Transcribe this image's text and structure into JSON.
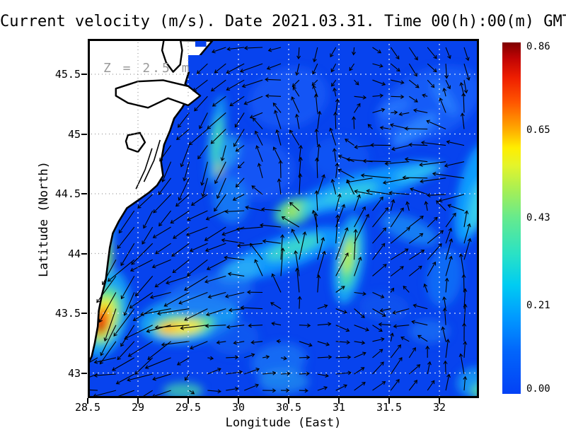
{
  "title": "Current velocity (m/s). Date 2021.03.31. Time 00(h):00(m) GMT",
  "annotation": {
    "depth_label": "Z = 2.5 m"
  },
  "axes": {
    "x_label": "Longitude (East)",
    "y_label": "Latitude (North)",
    "x_ticks": [
      {
        "value": 28.5,
        "label": "28.5"
      },
      {
        "value": 29,
        "label": "29"
      },
      {
        "value": 29.5,
        "label": "29.5"
      },
      {
        "value": 30,
        "label": "30"
      },
      {
        "value": 30.5,
        "label": "30.5"
      },
      {
        "value": 31,
        "label": "31"
      },
      {
        "value": 31.5,
        "label": "31.5"
      },
      {
        "value": 32,
        "label": "32"
      }
    ],
    "y_ticks": [
      {
        "value": 45.5,
        "label": "45.5"
      },
      {
        "value": 45,
        "label": "45"
      },
      {
        "value": 44.5,
        "label": "44.5"
      },
      {
        "value": 44,
        "label": "44"
      },
      {
        "value": 43.5,
        "label": "43.5"
      },
      {
        "value": 43,
        "label": "43"
      }
    ]
  },
  "colorbar": {
    "min": 0.0,
    "max": 0.86,
    "ticks": [
      {
        "value": 0.86,
        "label": "0.86"
      },
      {
        "value": 0.65,
        "label": "0.65"
      },
      {
        "value": 0.43,
        "label": "0.43"
      },
      {
        "value": 0.21,
        "label": "0.21"
      },
      {
        "value": 0.0,
        "label": "0.00"
      }
    ],
    "stops": [
      {
        "t": 0.0,
        "c": "#0341f5"
      },
      {
        "t": 0.12,
        "c": "#0265fb"
      },
      {
        "t": 0.22,
        "c": "#019bff"
      },
      {
        "t": 0.31,
        "c": "#00ccf2"
      },
      {
        "t": 0.4,
        "c": "#2be2c4"
      },
      {
        "t": 0.5,
        "c": "#65ea8e"
      },
      {
        "t": 0.58,
        "c": "#a7ef55"
      },
      {
        "t": 0.65,
        "c": "#e4f42b"
      },
      {
        "t": 0.7,
        "c": "#ffee00"
      },
      {
        "t": 0.755,
        "c": "#ffa800"
      },
      {
        "t": 0.83,
        "c": "#ff5500"
      },
      {
        "t": 0.9,
        "c": "#ee1e00"
      },
      {
        "t": 0.955,
        "c": "#c00404"
      },
      {
        "t": 1.0,
        "c": "#7f0000"
      }
    ]
  },
  "colors": {
    "ocean_base": "#0743ee",
    "land": "#ffffff",
    "coastline": "#000000",
    "arrows": "#000000",
    "grid_sea": "#e9eef6",
    "grid_land": "#9c9c9c",
    "frame": "#000000",
    "annotation_gray": "#9a9a9a"
  },
  "chart_data": {
    "type": "vector_field_heatmap",
    "quantity": "current velocity",
    "units": "m/s",
    "depth_m": 2.5,
    "datetime": "2021.03.31 00:00 GMT",
    "x_range": [
      28.5,
      32.394
    ],
    "y_range": [
      42.79,
      45.796
    ],
    "value_range": [
      0.0,
      0.86
    ],
    "hotspots": [
      {
        "lon": 28.63,
        "lat": 43.43,
        "value": 0.86,
        "note": "max velocity core at coast"
      },
      {
        "lon": 29.4,
        "lat": 43.38,
        "value": 0.6,
        "note": "yellow jet band"
      },
      {
        "lon": 31.1,
        "lat": 43.97,
        "value": 0.55,
        "note": "green band in eddy"
      },
      {
        "lon": 30.55,
        "lat": 44.36,
        "value": 0.5,
        "note": "green patch"
      }
    ],
    "blobs": [
      {
        "lon": 31.9,
        "lat": 45.25,
        "w": 1.1,
        "h": 0.55,
        "rot": -25,
        "c": "#1b63fa",
        "o": 0.75
      },
      {
        "lon": 30.5,
        "lat": 45.3,
        "w": 0.8,
        "h": 0.5,
        "rot": -15,
        "c": "#1b63fa",
        "o": 0.6
      },
      {
        "lon": 30.2,
        "lat": 44.7,
        "w": 0.7,
        "h": 0.5,
        "rot": 0,
        "c": "#1b63fa",
        "o": 0.6
      },
      {
        "lon": 31.0,
        "lat": 44.8,
        "w": 0.6,
        "h": 0.35,
        "rot": 0,
        "c": "#1b63fa",
        "o": 0.5
      },
      {
        "lon": 31.75,
        "lat": 45.03,
        "w": 0.55,
        "h": 0.14,
        "rot": -35,
        "c": "#2f86ff",
        "o": 0.85
      },
      {
        "lon": 32.05,
        "lat": 45.3,
        "w": 0.4,
        "h": 0.12,
        "rot": 55,
        "c": "#2f86ff",
        "o": 0.7
      },
      {
        "lon": 31.55,
        "lat": 45.22,
        "w": 0.35,
        "h": 0.1,
        "rot": -20,
        "c": "#2f86ff",
        "o": 0.6
      },
      {
        "lon": 32.33,
        "lat": 44.5,
        "w": 0.3,
        "h": 0.85,
        "rot": 12,
        "c": "#12a6ff",
        "o": 0.9
      },
      {
        "lon": 32.38,
        "lat": 44.4,
        "w": 0.16,
        "h": 0.45,
        "rot": 12,
        "c": "#3fd9e8",
        "o": 0.85
      },
      {
        "lon": 31.25,
        "lat": 44.55,
        "w": 1.5,
        "h": 0.26,
        "rot": -17,
        "c": "#129cff",
        "o": 0.9
      },
      {
        "lon": 31.1,
        "lat": 44.5,
        "w": 0.6,
        "h": 0.13,
        "rot": -17,
        "c": "#37d3e0",
        "o": 0.8
      },
      {
        "lon": 31.8,
        "lat": 44.68,
        "w": 0.5,
        "h": 0.12,
        "rot": -15,
        "c": "#2fc3f2",
        "o": 0.8
      },
      {
        "lon": 30.45,
        "lat": 44.0,
        "w": 1.25,
        "h": 0.28,
        "rot": -20,
        "c": "#129cff",
        "o": 0.9
      },
      {
        "lon": 30.55,
        "lat": 44.05,
        "w": 0.6,
        "h": 0.14,
        "rot": -20,
        "c": "#40dfc8",
        "o": 0.85
      },
      {
        "lon": 30.0,
        "lat": 43.85,
        "w": 0.45,
        "h": 0.2,
        "rot": -20,
        "c": "#2aaff5",
        "o": 0.8
      },
      {
        "lon": 31.1,
        "lat": 43.95,
        "w": 0.3,
        "h": 0.75,
        "rot": 8,
        "c": "#18aef5",
        "o": 0.9
      },
      {
        "lon": 31.1,
        "lat": 43.95,
        "w": 0.17,
        "h": 0.5,
        "rot": 8,
        "c": "#4ce39e",
        "o": 0.9
      },
      {
        "lon": 31.09,
        "lat": 43.98,
        "w": 0.1,
        "h": 0.3,
        "rot": 8,
        "c": "#c2ef3f",
        "o": 0.9
      },
      {
        "lon": 30.55,
        "lat": 44.35,
        "w": 0.4,
        "h": 0.22,
        "rot": -20,
        "c": "#4ce39e",
        "o": 0.85
      },
      {
        "lon": 30.55,
        "lat": 44.36,
        "w": 0.2,
        "h": 0.1,
        "rot": -20,
        "c": "#b4ec45",
        "o": 0.8
      },
      {
        "lon": 31.7,
        "lat": 44.2,
        "w": 0.6,
        "h": 0.2,
        "rot": 22,
        "c": "#1b8cf5",
        "o": 0.8
      },
      {
        "lon": 32.05,
        "lat": 43.8,
        "w": 0.35,
        "h": 0.5,
        "rot": 8,
        "c": "#1677f8",
        "o": 0.75
      },
      {
        "lon": 29.5,
        "lat": 43.45,
        "w": 1.0,
        "h": 0.4,
        "rot": -8,
        "c": "#18aef5",
        "o": 0.85
      },
      {
        "lon": 29.45,
        "lat": 43.4,
        "w": 0.62,
        "h": 0.2,
        "rot": -6,
        "c": "#5fe88a",
        "o": 0.9
      },
      {
        "lon": 29.42,
        "lat": 43.38,
        "w": 0.45,
        "h": 0.12,
        "rot": -6,
        "c": "#ffe63c",
        "o": 0.95
      },
      {
        "lon": 29.3,
        "lat": 43.38,
        "w": 0.2,
        "h": 0.08,
        "rot": -6,
        "c": "#ffb31e",
        "o": 0.9
      },
      {
        "lon": 28.68,
        "lat": 44.3,
        "w": 0.2,
        "h": 1.3,
        "rot": 4,
        "c": "#17a0f2",
        "o": 0.85
      },
      {
        "lon": 28.66,
        "lat": 44.5,
        "w": 0.13,
        "h": 0.5,
        "rot": 4,
        "c": "#49e0a6",
        "o": 0.75
      },
      {
        "lon": 28.68,
        "lat": 43.95,
        "w": 0.14,
        "h": 0.35,
        "rot": 2,
        "c": "#8fe95f",
        "o": 0.8
      },
      {
        "lon": 28.62,
        "lat": 44.85,
        "w": 0.12,
        "h": 0.3,
        "rot": 0,
        "c": "#2fbdf0",
        "o": 0.7
      },
      {
        "lon": 28.66,
        "lat": 43.5,
        "w": 0.5,
        "h": 0.75,
        "rot": 12,
        "c": "#18aef5",
        "o": 0.85
      },
      {
        "lon": 28.66,
        "lat": 43.48,
        "w": 0.34,
        "h": 0.5,
        "rot": 12,
        "c": "#5fe88a",
        "o": 0.9
      },
      {
        "lon": 28.65,
        "lat": 43.46,
        "w": 0.24,
        "h": 0.36,
        "rot": 12,
        "c": "#e8f52e",
        "o": 0.95
      },
      {
        "lon": 28.64,
        "lat": 43.44,
        "w": 0.17,
        "h": 0.26,
        "rot": 12,
        "c": "#ff9d17",
        "o": 0.95
      },
      {
        "lon": 28.63,
        "lat": 43.42,
        "w": 0.12,
        "h": 0.18,
        "rot": 12,
        "c": "#f22c07",
        "o": 0.95
      },
      {
        "lon": 28.62,
        "lat": 43.37,
        "w": 0.07,
        "h": 0.1,
        "rot": 12,
        "c": "#8f0a06",
        "o": 0.95
      },
      {
        "lon": 29.78,
        "lat": 44.95,
        "w": 0.16,
        "h": 0.75,
        "rot": 7,
        "c": "#17a0f2",
        "o": 0.9
      },
      {
        "lon": 29.79,
        "lat": 44.95,
        "w": 0.1,
        "h": 0.4,
        "rot": 7,
        "c": "#49dfb2",
        "o": 0.85
      },
      {
        "lon": 29.81,
        "lat": 44.72,
        "w": 0.07,
        "h": 0.16,
        "rot": 7,
        "c": "#cdee3a",
        "o": 0.8
      },
      {
        "lon": 29.92,
        "lat": 44.45,
        "w": 0.35,
        "h": 0.4,
        "rot": -10,
        "c": "#1b8cf5",
        "o": 0.7
      },
      {
        "lon": 29.9,
        "lat": 44.85,
        "w": 0.2,
        "h": 0.3,
        "rot": 20,
        "c": "#2fbdf0",
        "o": 0.6
      },
      {
        "lon": 30.4,
        "lat": 43.1,
        "w": 0.55,
        "h": 0.3,
        "rot": -10,
        "c": "#1b74f5",
        "o": 0.8
      },
      {
        "lon": 30.45,
        "lat": 42.93,
        "w": 0.5,
        "h": 0.2,
        "rot": 0,
        "c": "#2496f0",
        "o": 0.7
      },
      {
        "lon": 29.45,
        "lat": 42.85,
        "w": 0.4,
        "h": 0.14,
        "rot": 0,
        "c": "#49e0a6",
        "o": 0.7
      },
      {
        "lon": 32.35,
        "lat": 42.92,
        "w": 0.35,
        "h": 0.25,
        "rot": -10,
        "c": "#17a0f2",
        "o": 0.85
      },
      {
        "lon": 32.42,
        "lat": 42.85,
        "w": 0.2,
        "h": 0.13,
        "rot": -10,
        "c": "#5fe88a",
        "o": 0.8
      },
      {
        "lon": 31.9,
        "lat": 43.35,
        "w": 0.4,
        "h": 0.2,
        "rot": 0,
        "c": "#1b74f5",
        "o": 0.7
      },
      {
        "lon": 29.7,
        "lat": 43.65,
        "w": 0.9,
        "h": 0.35,
        "rot": -10,
        "c": "#1b74f5",
        "o": 0.7
      },
      {
        "lon": 29.95,
        "lat": 43.3,
        "w": 0.5,
        "h": 0.3,
        "rot": 0,
        "c": "#1666f2",
        "o": 0.6
      },
      {
        "lon": 30.75,
        "lat": 44.4,
        "w": 0.35,
        "h": 0.1,
        "rot": -25,
        "c": "#2fc3f2",
        "o": 0.7
      },
      {
        "lon": 31.45,
        "lat": 43.55,
        "w": 0.5,
        "h": 0.25,
        "rot": 5,
        "c": "#1560f0",
        "o": 0.5
      }
    ],
    "flow_anchors": [
      {
        "lon": 31.6,
        "lat": 45.68,
        "dir": -60,
        "mag": 0.25
      },
      {
        "lon": 30.7,
        "lat": 45.68,
        "dir": -95,
        "mag": 0.25
      },
      {
        "lon": 31.5,
        "lat": 45.5,
        "dir": -15,
        "mag": 0.3
      },
      {
        "lon": 32.25,
        "lat": 45.55,
        "dir": -80,
        "mag": 0.3
      },
      {
        "lon": 30.25,
        "lat": 45.55,
        "dir": 185,
        "mag": 0.45
      },
      {
        "lon": 31.0,
        "lat": 45.55,
        "dir": -135,
        "mag": 0.2
      },
      {
        "lon": 29.95,
        "lat": 45.15,
        "dir": 235,
        "mag": 0.5
      },
      {
        "lon": 29.88,
        "lat": 44.7,
        "dir": 255,
        "mag": 0.55
      },
      {
        "lon": 30.0,
        "lat": 45.45,
        "dir": 210,
        "mag": 0.35
      },
      {
        "lon": 30.4,
        "lat": 44.95,
        "dir": 115,
        "mag": 0.4
      },
      {
        "lon": 30.85,
        "lat": 45.15,
        "dir": 90,
        "mag": 0.4
      },
      {
        "lon": 31.3,
        "lat": 45.35,
        "dir": 5,
        "mag": 0.25
      },
      {
        "lon": 32.25,
        "lat": 45.2,
        "dir": 90,
        "mag": 0.35
      },
      {
        "lon": 31.9,
        "lat": 44.97,
        "dir": 180,
        "mag": 0.5
      },
      {
        "lon": 32.25,
        "lat": 44.6,
        "dir": 185,
        "mag": 0.6
      },
      {
        "lon": 31.5,
        "lat": 44.67,
        "dir": 185,
        "mag": 0.65
      },
      {
        "lon": 30.65,
        "lat": 44.6,
        "dir": 80,
        "mag": 0.45
      },
      {
        "lon": 30.25,
        "lat": 44.72,
        "dir": 105,
        "mag": 0.35
      },
      {
        "lon": 29.7,
        "lat": 44.3,
        "dir": 215,
        "mag": 0.5
      },
      {
        "lon": 28.85,
        "lat": 44.55,
        "dir": 235,
        "mag": 0.5
      },
      {
        "lon": 28.75,
        "lat": 44.0,
        "dir": 235,
        "mag": 0.7
      },
      {
        "lon": 28.68,
        "lat": 43.45,
        "dir": 250,
        "mag": 0.95
      },
      {
        "lon": 29.0,
        "lat": 43.2,
        "dir": 215,
        "mag": 0.55
      },
      {
        "lon": 29.55,
        "lat": 43.5,
        "dir": 195,
        "mag": 0.75
      },
      {
        "lon": 29.5,
        "lat": 43.85,
        "dir": 205,
        "mag": 0.5
      },
      {
        "lon": 30.15,
        "lat": 43.55,
        "dir": 190,
        "mag": 0.4
      },
      {
        "lon": 30.5,
        "lat": 43.85,
        "dir": 88,
        "mag": 0.6
      },
      {
        "lon": 30.35,
        "lat": 44.2,
        "dir": 185,
        "mag": 0.6
      },
      {
        "lon": 31.05,
        "lat": 44.0,
        "dir": 80,
        "mag": 0.85
      },
      {
        "lon": 31.35,
        "lat": 44.15,
        "dir": 45,
        "mag": 0.5
      },
      {
        "lon": 31.65,
        "lat": 44.0,
        "dir": 25,
        "mag": 0.45
      },
      {
        "lon": 32.1,
        "lat": 44.1,
        "dir": 60,
        "mag": 0.4
      },
      {
        "lon": 32.3,
        "lat": 43.8,
        "dir": 90,
        "mag": 0.45
      },
      {
        "lon": 31.2,
        "lat": 43.55,
        "dir": -35,
        "mag": 0.3
      },
      {
        "lon": 31.7,
        "lat": 43.45,
        "dir": 185,
        "mag": 0.35
      },
      {
        "lon": 30.85,
        "lat": 43.3,
        "dir": -10,
        "mag": 0.3
      },
      {
        "lon": 28.8,
        "lat": 42.95,
        "dir": 185,
        "mag": 0.5
      },
      {
        "lon": 29.9,
        "lat": 42.95,
        "dir": 10,
        "mag": 0.3
      },
      {
        "lon": 31.5,
        "lat": 43.05,
        "dir": 45,
        "mag": 0.35
      },
      {
        "lon": 32.25,
        "lat": 43.3,
        "dir": 90,
        "mag": 0.4
      }
    ],
    "land": {
      "coast": [
        [
          29.74,
          45.78
        ],
        [
          29.61,
          45.65
        ],
        [
          29.51,
          45.53
        ],
        [
          29.47,
          45.42
        ],
        [
          29.53,
          45.35
        ],
        [
          29.44,
          45.22
        ],
        [
          29.36,
          45.13
        ],
        [
          29.32,
          45.03
        ],
        [
          29.26,
          44.91
        ],
        [
          29.23,
          44.77
        ],
        [
          29.25,
          44.65
        ],
        [
          29.19,
          44.57
        ],
        [
          29.11,
          44.51
        ],
        [
          29.01,
          44.45
        ],
        [
          28.89,
          44.38
        ],
        [
          28.81,
          44.27
        ],
        [
          28.75,
          44.17
        ],
        [
          28.72,
          44.05
        ],
        [
          28.7,
          43.92
        ],
        [
          28.68,
          43.78
        ],
        [
          28.64,
          43.65
        ],
        [
          28.61,
          43.52
        ],
        [
          28.6,
          43.39
        ],
        [
          28.57,
          43.25
        ],
        [
          28.54,
          43.14
        ],
        [
          28.5,
          43.07
        ]
      ],
      "loops": [
        [
          [
            28.78,
            45.38
          ],
          [
            29.0,
            45.44
          ],
          [
            29.25,
            45.45
          ],
          [
            29.5,
            45.4
          ],
          [
            29.62,
            45.32
          ],
          [
            29.5,
            45.24
          ],
          [
            29.3,
            45.3
          ],
          [
            29.1,
            45.22
          ],
          [
            28.9,
            45.26
          ],
          [
            28.78,
            45.32
          ]
        ],
        [
          [
            28.9,
            44.99
          ],
          [
            29.02,
            45.01
          ],
          [
            29.07,
            44.93
          ],
          [
            29.0,
            44.85
          ],
          [
            28.9,
            44.88
          ],
          [
            28.88,
            44.94
          ]
        ],
        [
          [
            29.26,
            45.8
          ],
          [
            29.24,
            45.7
          ],
          [
            29.28,
            45.6
          ],
          [
            29.35,
            45.52
          ],
          [
            29.42,
            45.58
          ],
          [
            29.44,
            45.7
          ],
          [
            29.42,
            45.8
          ]
        ]
      ],
      "inner_lines": [
        [
          [
            29.22,
            44.95
          ],
          [
            29.16,
            44.78
          ],
          [
            29.06,
            44.6
          ]
        ],
        [
          [
            29.14,
            44.88
          ],
          [
            29.07,
            44.7
          ],
          [
            28.98,
            44.54
          ]
        ]
      ],
      "lagoon_rects": [
        {
          "x": [
            29.5,
            29.63
          ],
          "y": [
            45.52,
            45.66
          ]
        },
        {
          "x": [
            29.57,
            29.68
          ],
          "y": [
            45.73,
            45.8
          ]
        }
      ]
    }
  }
}
